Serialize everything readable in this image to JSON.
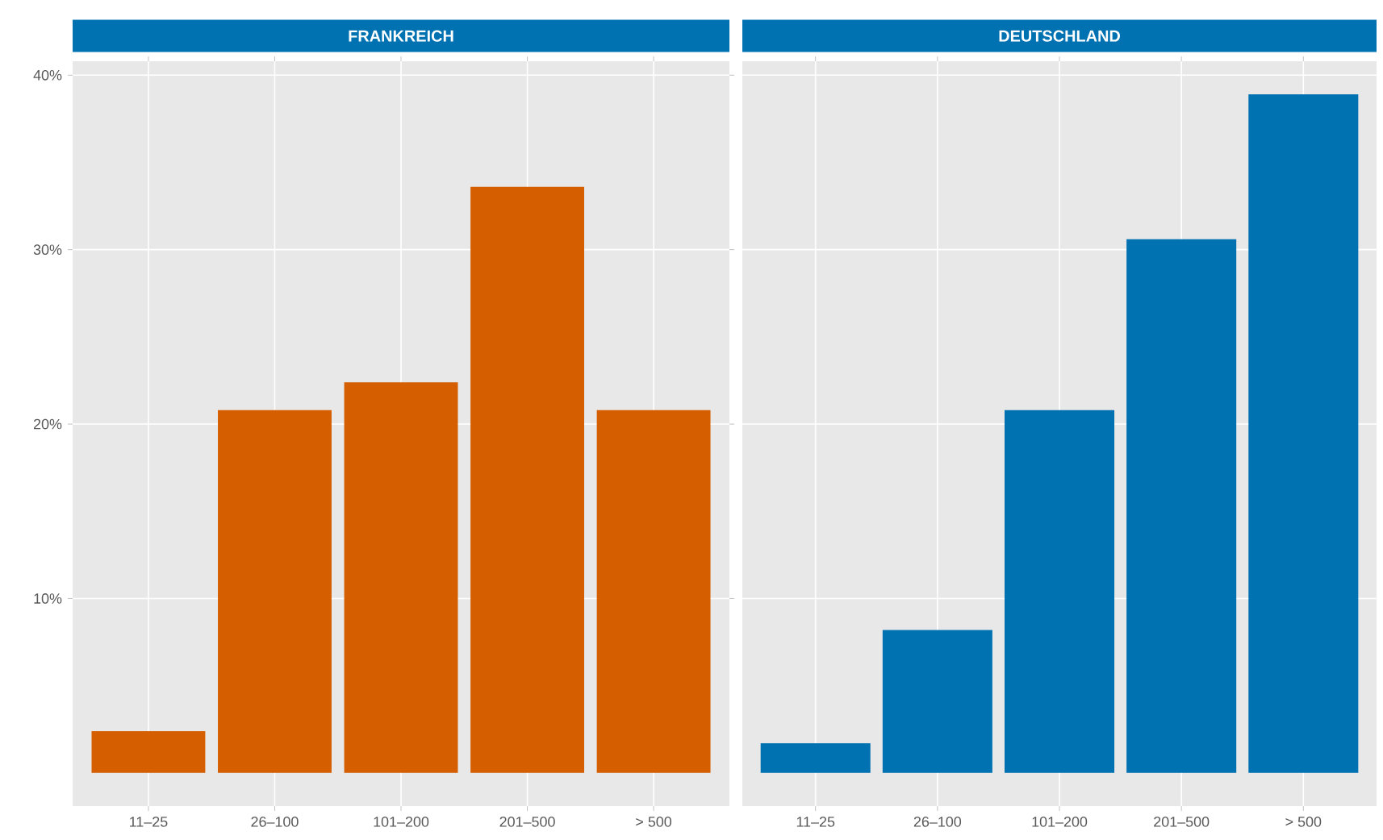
{
  "chart_data": [
    {
      "type": "bar",
      "title": "FRANKREICH",
      "categories": [
        "11–25",
        "26–100",
        "101–200",
        "201–500",
        "> 500"
      ],
      "values": [
        2.4,
        20.8,
        22.4,
        33.6,
        20.8
      ],
      "color": "#d55e00",
      "ylim": [
        -1.9,
        40.8
      ],
      "yticks": [
        {
          "value": 10,
          "label": "10%"
        },
        {
          "value": 20,
          "label": "20%"
        },
        {
          "value": 30,
          "label": "30%"
        },
        {
          "value": 40,
          "label": "40%"
        }
      ],
      "grid": true
    },
    {
      "type": "bar",
      "title": "DEUTSCHLAND",
      "categories": [
        "11–25",
        "26–100",
        "101–200",
        "201–500",
        "> 500"
      ],
      "values": [
        1.7,
        8.2,
        20.8,
        30.6,
        38.9
      ],
      "color": "#0072b2",
      "ylim": [
        -1.9,
        40.8
      ],
      "yticks": [
        10,
        20,
        30,
        40
      ],
      "grid": true,
      "tick_labels": "x"
    }
  ]
}
